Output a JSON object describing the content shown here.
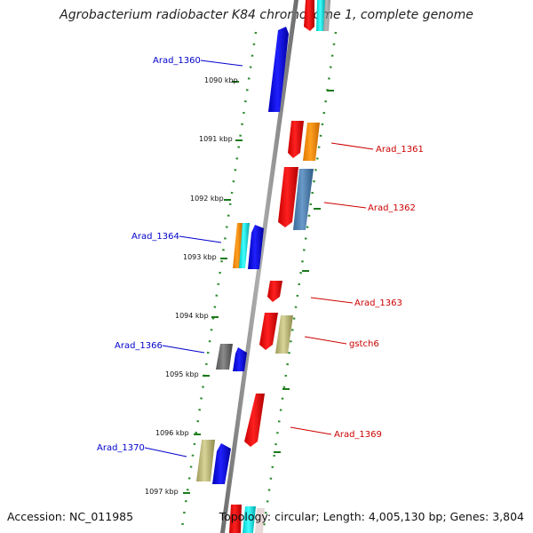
{
  "title": "Agrobacterium radiobacter K84 chromosome 1, complete genome",
  "footer": {
    "accession": "Accession: NC_011985",
    "topology": "Topology: circular; Length: 4,005,130 bp; Genes: 3,804"
  },
  "colors": {
    "backbone": "#8a8a8a",
    "dots": "#2e8b2e",
    "left_label": "#0000cc",
    "right_label": "#cc0000"
  },
  "kbp_ticks": [
    "1090 kbp",
    "1091 kbp",
    "1092 kbp",
    "1093 kbp",
    "1094 kbp",
    "1095 kbp",
    "1096 kbp",
    "1097 kbp"
  ],
  "gene_labels": {
    "left": [
      "Arad_1360",
      "Arad_1364",
      "Arad_1366",
      "Arad_1370"
    ],
    "right": [
      "Arad_1361",
      "Arad_1362",
      "Arad_1363",
      "gstch6",
      "Arad_1369"
    ]
  },
  "gene_colors": [
    "red",
    "orange",
    "cyan",
    "blue",
    "steelblue",
    "khaki",
    "gray"
  ]
}
